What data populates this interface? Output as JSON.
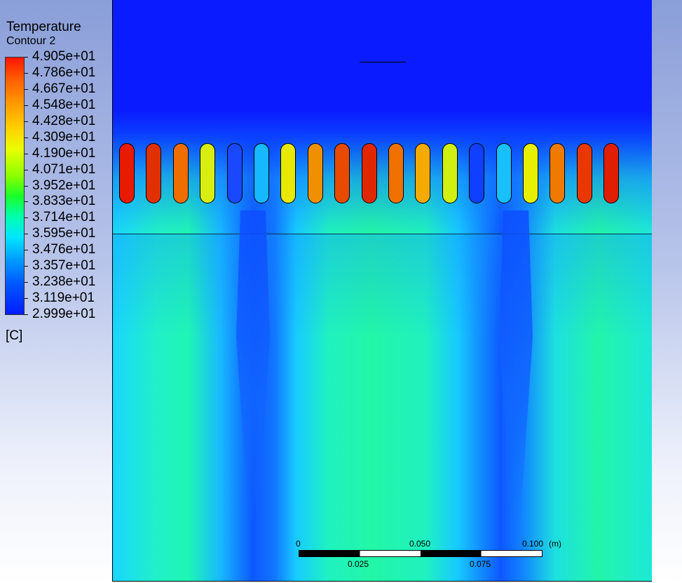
{
  "legend": {
    "title": "Temperature",
    "subtitle": "Contour 2",
    "unit": "[C]",
    "labels": [
      "4.905e+01",
      "4.786e+01",
      "4.667e+01",
      "4.548e+01",
      "4.428e+01",
      "4.309e+01",
      "4.190e+01",
      "4.071e+01",
      "3.952e+01",
      "3.833e+01",
      "3.714e+01",
      "3.595e+01",
      "3.476e+01",
      "3.357e+01",
      "3.238e+01",
      "3.119e+01",
      "2.999e+01"
    ],
    "colors": {
      "max": "#ff1500",
      "min": "#001cff"
    }
  },
  "viewport": {
    "tube_temperatures": [
      "#e81a00",
      "#e03000",
      "#f06e00",
      "#d8ee10",
      "#1a48ff",
      "#16b8ff",
      "#e8e800",
      "#f09000",
      "#e84a00",
      "#e02800",
      "#f07000",
      "#f4aa00",
      "#d0f010",
      "#1040ff",
      "#18c0ff",
      "#e8f000",
      "#f07a00",
      "#e83800",
      "#e01e00"
    ],
    "background_colors": {
      "upper_fluid": "#0a1cff",
      "lower_fluid": "#22f6a6"
    }
  },
  "scale": {
    "top_labels": [
      "0",
      "0.050",
      "0.100",
      "(m)"
    ],
    "bottom_labels": [
      "0.025",
      "0.075"
    ]
  }
}
